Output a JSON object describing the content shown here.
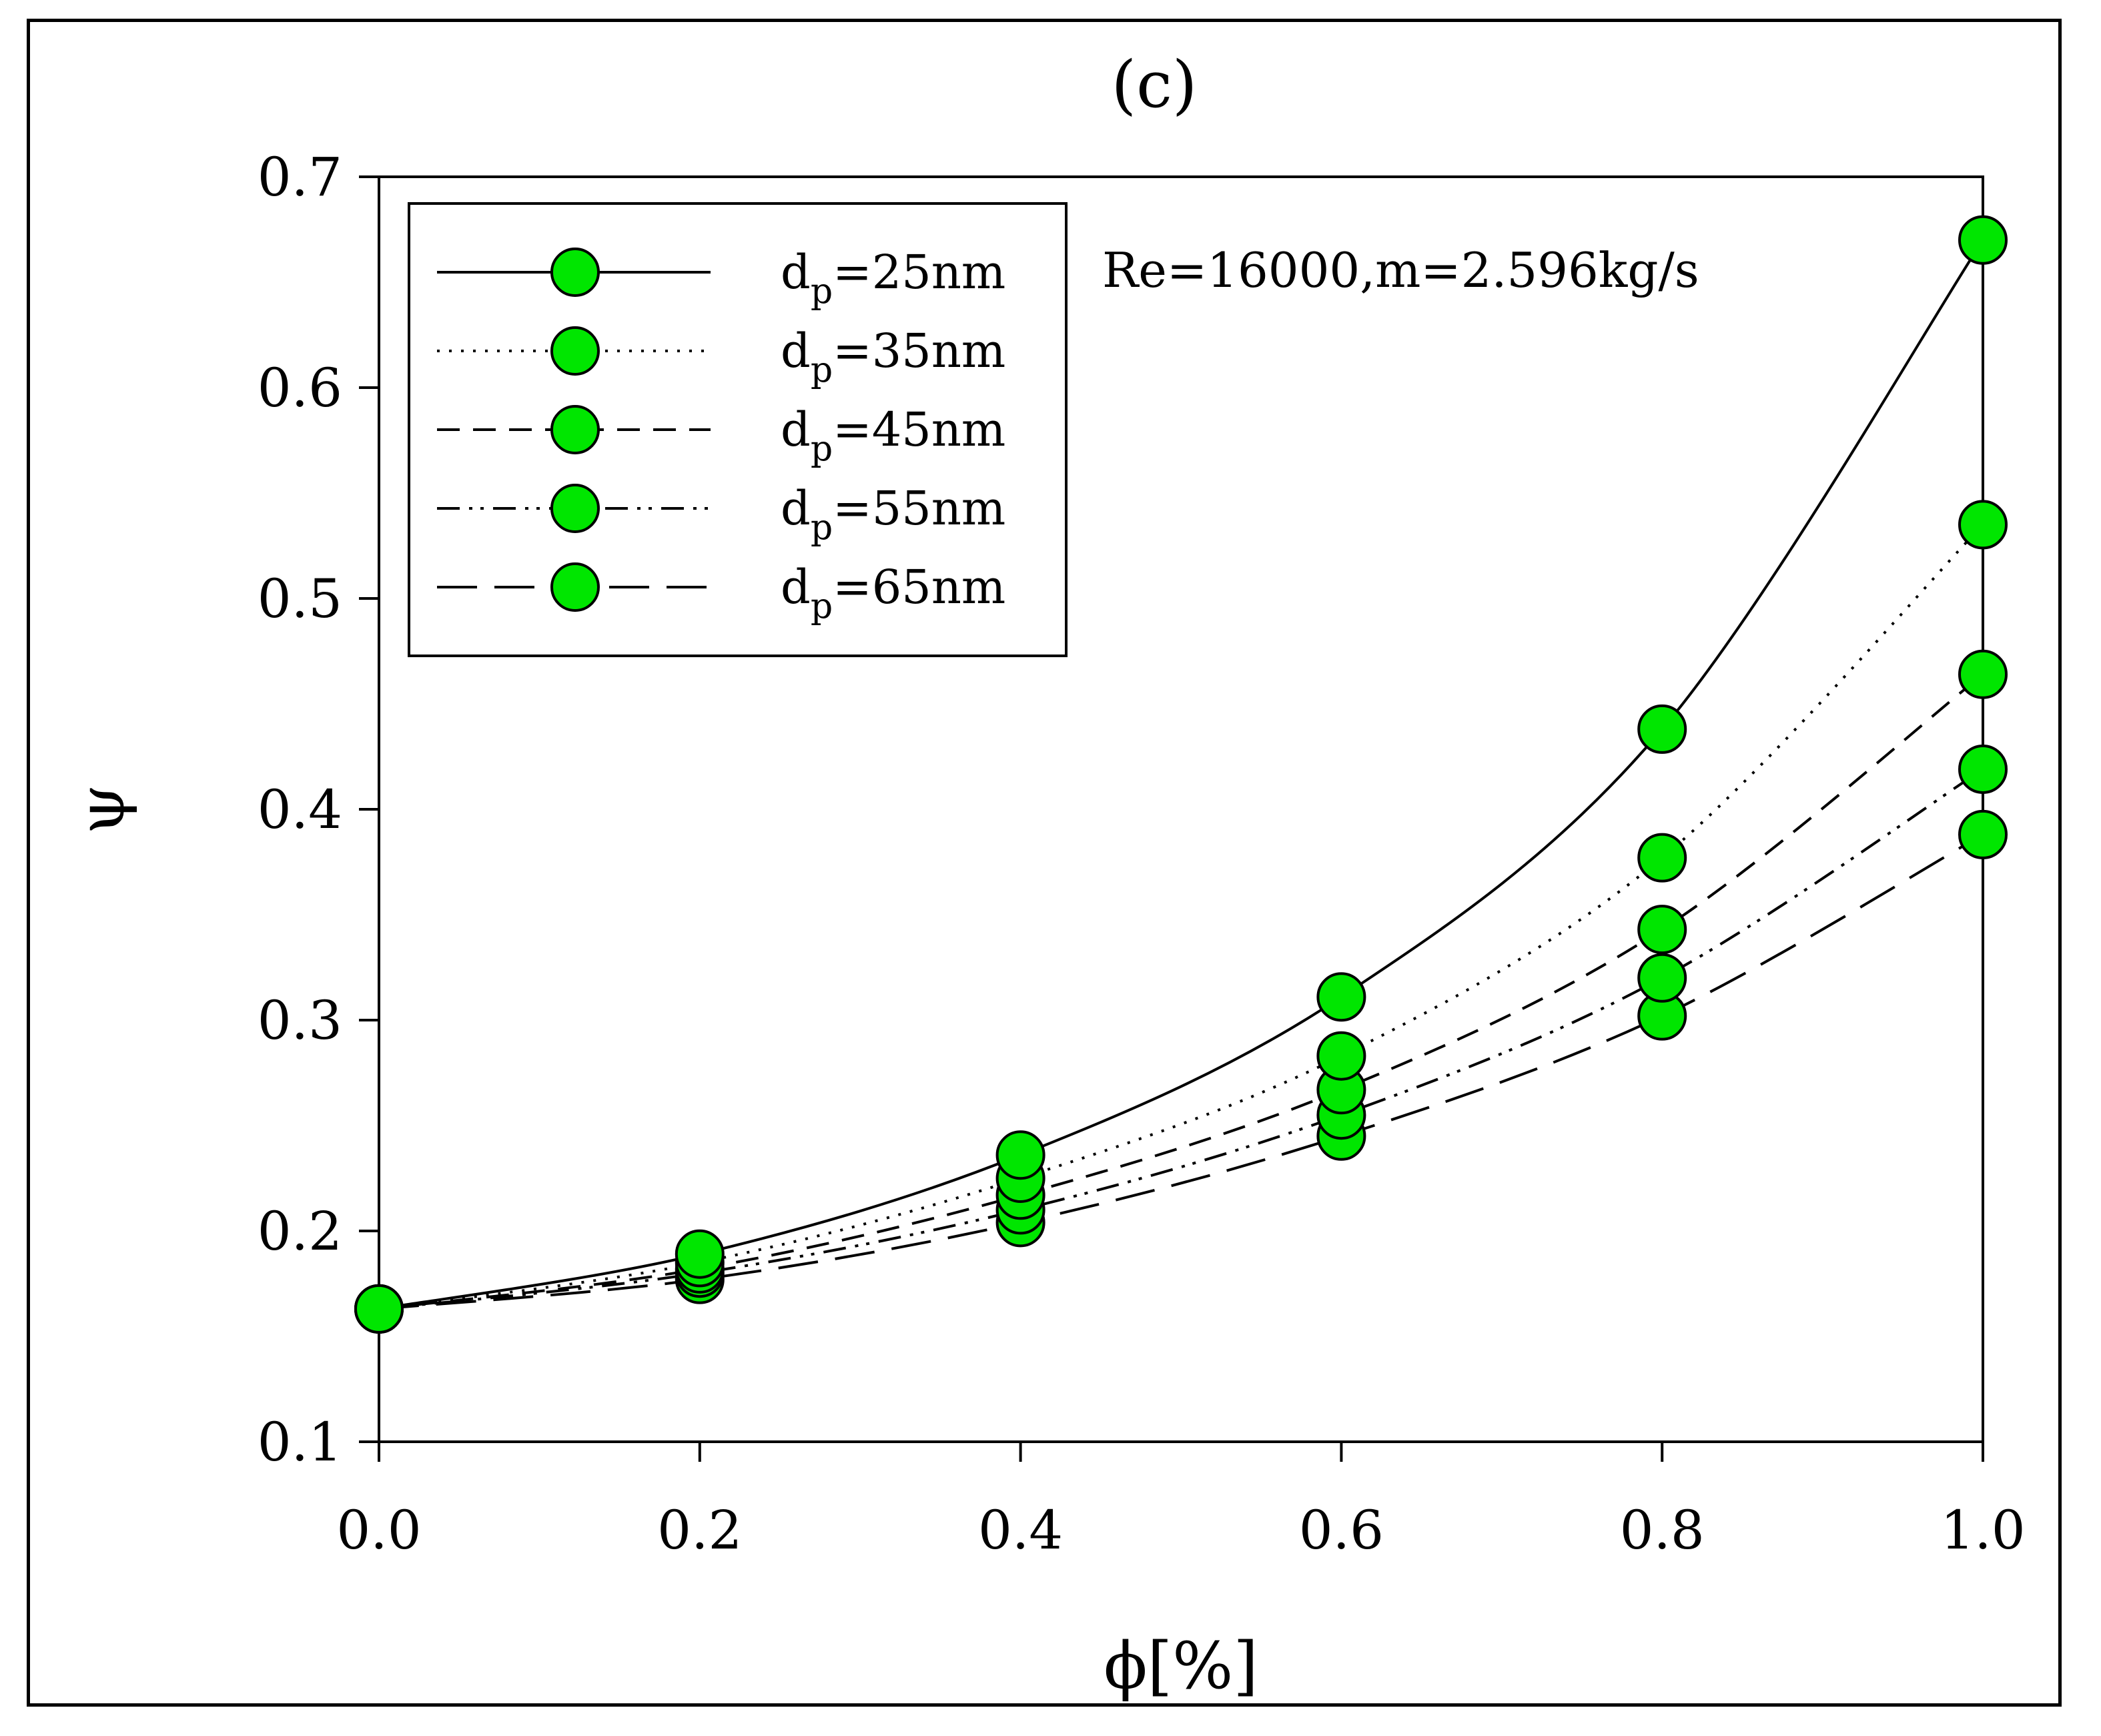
{
  "chart_data": {
    "type": "line",
    "panel_label": "(c)",
    "xlabel": "ϕ[%]",
    "ylabel": "ψ",
    "xlim": [
      0.0,
      1.0
    ],
    "ylim": [
      0.1,
      0.7
    ],
    "grid": false,
    "x_ticks": [
      0.0,
      0.2,
      0.4,
      0.6,
      0.8,
      1.0
    ],
    "x_tick_labels": [
      "0.0",
      "0.2",
      "0.4",
      "0.6",
      "0.8",
      "1.0"
    ],
    "y_ticks": [
      0.1,
      0.2,
      0.3,
      0.4,
      0.5,
      0.6,
      0.7
    ],
    "y_tick_labels": [
      "0.1",
      "0.2",
      "0.3",
      "0.4",
      "0.5",
      "0.6",
      "0.7"
    ],
    "annotation": "Re=16000,m=2.596kg/s",
    "legend_position": "top-left",
    "marker_color": "#00e600",
    "x": [
      0.0,
      0.2,
      0.4,
      0.6,
      0.8,
      1.0
    ],
    "series": [
      {
        "name": "dp=25nm",
        "legend_main": "d",
        "legend_sub": "p",
        "legend_rest": "=25nm",
        "line_style": "solid",
        "values": [
          0.163,
          0.189,
          0.236,
          0.311,
          0.438,
          0.67
        ]
      },
      {
        "name": "dp=35nm",
        "legend_main": "d",
        "legend_sub": "p",
        "legend_rest": "=35nm",
        "line_style": "dotted",
        "values": [
          0.163,
          0.185,
          0.225,
          0.283,
          0.377,
          0.535
        ]
      },
      {
        "name": "dp=45nm",
        "legend_main": "d",
        "legend_sub": "p",
        "legend_rest": "=45nm",
        "line_style": "dashed",
        "values": [
          0.163,
          0.182,
          0.217,
          0.267,
          0.343,
          0.464
        ]
      },
      {
        "name": "dp=55nm",
        "legend_main": "d",
        "legend_sub": "p",
        "legend_rest": "=55nm",
        "line_style": "dash-dot-dot",
        "values": [
          0.163,
          0.18,
          0.21,
          0.255,
          0.32,
          0.419
        ]
      },
      {
        "name": "dp=65nm",
        "legend_main": "d",
        "legend_sub": "p",
        "legend_rest": "=65nm",
        "line_style": "long-dash",
        "values": [
          0.163,
          0.177,
          0.204,
          0.245,
          0.302,
          0.388
        ]
      }
    ]
  }
}
